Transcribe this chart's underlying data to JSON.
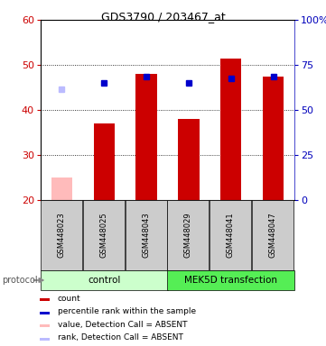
{
  "title": "GDS3790 / 203467_at",
  "samples": [
    "GSM448023",
    "GSM448025",
    "GSM448043",
    "GSM448029",
    "GSM448041",
    "GSM448047"
  ],
  "bar_values": [
    null,
    37.0,
    48.0,
    38.0,
    51.5,
    47.5
  ],
  "absent_bar_values": [
    25.0,
    null,
    null,
    null,
    null,
    null
  ],
  "absent_bar_color": "#ffbbbb",
  "rank_values_left_scale": [
    null,
    46.0,
    47.5,
    46.0,
    47.0,
    47.5
  ],
  "absent_rank_values_left_scale": [
    44.5,
    null,
    null,
    null,
    null,
    null
  ],
  "absent_rank_color": "#bbbbff",
  "ylim_left": [
    20,
    60
  ],
  "ylim_right": [
    0,
    100
  ],
  "yticks_left": [
    20,
    30,
    40,
    50,
    60
  ],
  "yticks_right": [
    0,
    25,
    50,
    75,
    100
  ],
  "ytick_labels_right": [
    "0",
    "25",
    "50",
    "75",
    "100%"
  ],
  "bar_bottom": 20,
  "bar_color": "#cc0000",
  "rank_color": "#0000cc",
  "groups": [
    {
      "label": "control",
      "start": 0,
      "end": 3,
      "color": "#ccffcc"
    },
    {
      "label": "MEK5D transfection",
      "start": 3,
      "end": 6,
      "color": "#55ee55"
    }
  ],
  "protocol_label": "protocol",
  "legend_items": [
    {
      "color": "#cc0000",
      "label": "count"
    },
    {
      "color": "#0000cc",
      "label": "percentile rank within the sample"
    },
    {
      "color": "#ffbbbb",
      "label": "value, Detection Call = ABSENT"
    },
    {
      "color": "#bbbbff",
      "label": "rank, Detection Call = ABSENT"
    }
  ],
  "left_axis_color": "#cc0000",
  "right_axis_color": "#0000bb",
  "sample_box_color": "#cccccc"
}
